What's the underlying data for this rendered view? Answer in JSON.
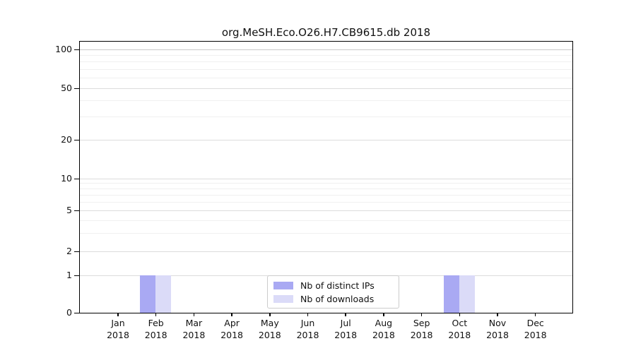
{
  "chart_data": {
    "type": "bar",
    "title": "org.MeSH.Eco.O26.H7.CB9615.db 2018",
    "year": "2018",
    "categories": [
      "Jan",
      "Feb",
      "Mar",
      "Apr",
      "May",
      "Jun",
      "Jul",
      "Aug",
      "Sep",
      "Oct",
      "Nov",
      "Dec"
    ],
    "series": [
      {
        "name": "Nb of distinct IPs",
        "color": "#a9a9f3",
        "values": [
          0,
          1,
          0,
          0,
          0,
          0,
          0,
          0,
          0,
          1,
          0,
          0
        ]
      },
      {
        "name": "Nb of downloads",
        "color": "#dbdbf8",
        "values": [
          0,
          1,
          0,
          0,
          0,
          0,
          0,
          0,
          0,
          1,
          0,
          0
        ]
      }
    ],
    "xlabel": "",
    "ylabel": "",
    "y_ticks": [
      0,
      1,
      2,
      5,
      10,
      20,
      50,
      100
    ],
    "y_minor_ticks": [
      3,
      4,
      6,
      7,
      8,
      9,
      30,
      40,
      60,
      70,
      80,
      90
    ],
    "ylim": [
      0,
      100
    ],
    "yscale": "log-like-with-zero",
    "grid": "horizontal",
    "legend_position": "bottom-center"
  },
  "legend": {
    "items": [
      {
        "label": "Nb of distinct IPs",
        "color": "#a9a9f3"
      },
      {
        "label": "Nb of downloads",
        "color": "#dbdbf8"
      }
    ]
  }
}
